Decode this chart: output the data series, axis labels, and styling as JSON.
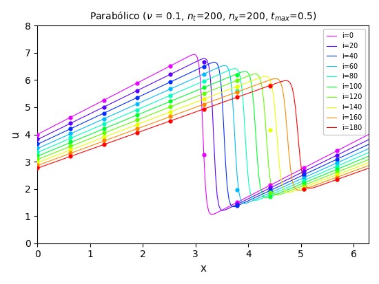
{
  "title": "Parabólico ($\\nu$ = 0.1, $n_t$=200, $n_x$=200, $t_{max}$=0.5)",
  "xlabel": "x",
  "ylabel": "u",
  "nu": 0.1,
  "nt": 200,
  "nx": 200,
  "t_max": 0.5,
  "x_min": 0.0,
  "x_max": 6.283185307179586,
  "u_min": 0.0,
  "u_max": 8.0,
  "legend_steps": [
    0,
    20,
    40,
    60,
    80,
    100,
    120,
    140,
    160,
    180
  ],
  "marker_every": 20,
  "figsize": [
    5.5,
    4.13
  ],
  "dpi": 100
}
